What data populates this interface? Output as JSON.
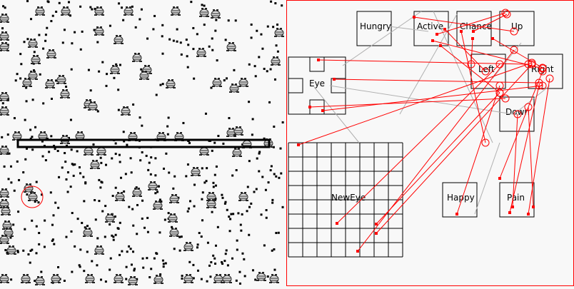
{
  "world": {
    "selected_creature_marker_color": "#ff0000",
    "wall_color": "#000000"
  },
  "brain": {
    "border_color": "#ff0000",
    "neurons": {
      "hungry": "Hungry",
      "active": "Active",
      "chance": "Chance",
      "up": "Up",
      "left": "Left",
      "right": "Right",
      "eye": "Eye",
      "down": "Down",
      "happy": "Happy",
      "pain": "Pain",
      "neweye": "NewEye"
    },
    "excitatory_color": "#ff0000",
    "inhibitory_color": "#b0b0b0"
  }
}
